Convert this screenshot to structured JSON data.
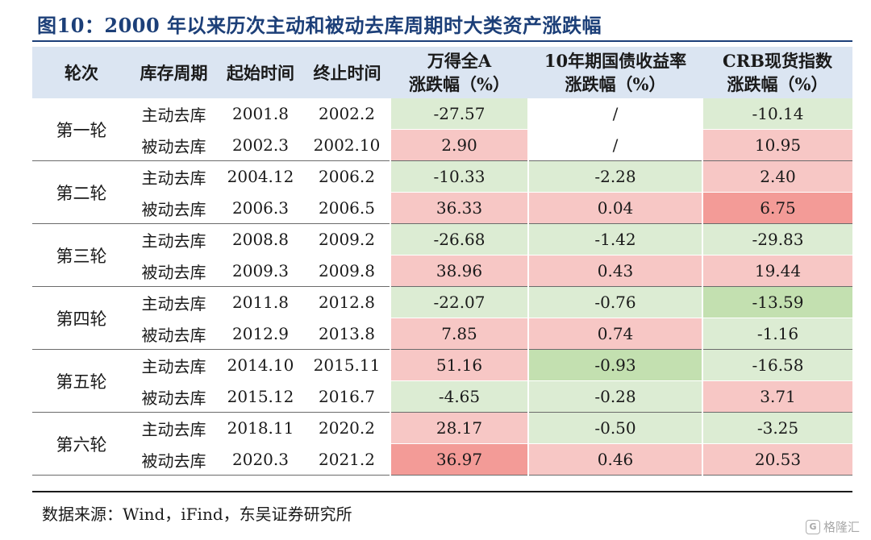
{
  "title": "图10：2000 年以来历次主动和被动去库周期时大类资产涨跌幅",
  "headers": {
    "round": "轮次",
    "cycle": "库存周期",
    "start": "起始时间",
    "end": "终止时间",
    "a_share": [
      "万得全A",
      "涨跌幅（%）"
    ],
    "bond": [
      "10年期国债收益率",
      "涨跌幅（%）"
    ],
    "crb": [
      "CRB现货指数",
      "涨跌幅（%）"
    ]
  },
  "rounds": [
    {
      "label": "第一轮",
      "rows": [
        {
          "cycle": "主动去库",
          "start": "2001.8",
          "end": "2002.2",
          "a": "-27.57",
          "b": "/",
          "c": "-10.14"
        },
        {
          "cycle": "被动去库",
          "start": "2002.3",
          "end": "2002.10",
          "a": "2.90",
          "b": "/",
          "c": "10.95"
        }
      ]
    },
    {
      "label": "第二轮",
      "rows": [
        {
          "cycle": "主动去库",
          "start": "2004.12",
          "end": "2006.2",
          "a": "-10.33",
          "b": "-2.28",
          "c": "2.40"
        },
        {
          "cycle": "被动去库",
          "start": "2006.3",
          "end": "2006.5",
          "a": "36.33",
          "b": "0.04",
          "c": "6.75"
        }
      ]
    },
    {
      "label": "第三轮",
      "rows": [
        {
          "cycle": "主动去库",
          "start": "2008.8",
          "end": "2009.2",
          "a": "-26.68",
          "b": "-1.42",
          "c": "-29.83"
        },
        {
          "cycle": "被动去库",
          "start": "2009.3",
          "end": "2009.8",
          "a": "38.96",
          "b": "0.43",
          "c": "19.44"
        }
      ]
    },
    {
      "label": "第四轮",
      "rows": [
        {
          "cycle": "主动去库",
          "start": "2011.8",
          "end": "2012.8",
          "a": "-22.07",
          "b": "-0.76",
          "c": "-13.59"
        },
        {
          "cycle": "被动去库",
          "start": "2012.9",
          "end": "2013.8",
          "a": "7.85",
          "b": "0.74",
          "c": "-1.16"
        }
      ]
    },
    {
      "label": "第五轮",
      "rows": [
        {
          "cycle": "主动去库",
          "start": "2014.10",
          "end": "2015.11",
          "a": "51.16",
          "b": "-0.93",
          "c": "-16.58"
        },
        {
          "cycle": "被动去库",
          "start": "2015.12",
          "end": "2016.7",
          "a": "-4.65",
          "b": "-0.28",
          "c": "3.71"
        }
      ]
    },
    {
      "label": "第六轮",
      "rows": [
        {
          "cycle": "主动去库",
          "start": "2018.11",
          "end": "2020.2",
          "a": "28.17",
          "b": "-0.50",
          "c": "-3.25"
        },
        {
          "cycle": "被动去库",
          "start": "2020.3",
          "end": "2021.2",
          "a": "36.97",
          "b": "0.46",
          "c": "20.53"
        }
      ]
    }
  ],
  "source": "数据来源：Wind，iFind，东吴证券研究所",
  "watermark": "格隆汇",
  "colors": {
    "header_bg": "#dbe5f2",
    "positive": "#f7c7c5",
    "positive_strong": "#f39b97",
    "negative": "#dcecd3",
    "negative_strong": "#c3e0b0",
    "title": "#1c3f78"
  }
}
